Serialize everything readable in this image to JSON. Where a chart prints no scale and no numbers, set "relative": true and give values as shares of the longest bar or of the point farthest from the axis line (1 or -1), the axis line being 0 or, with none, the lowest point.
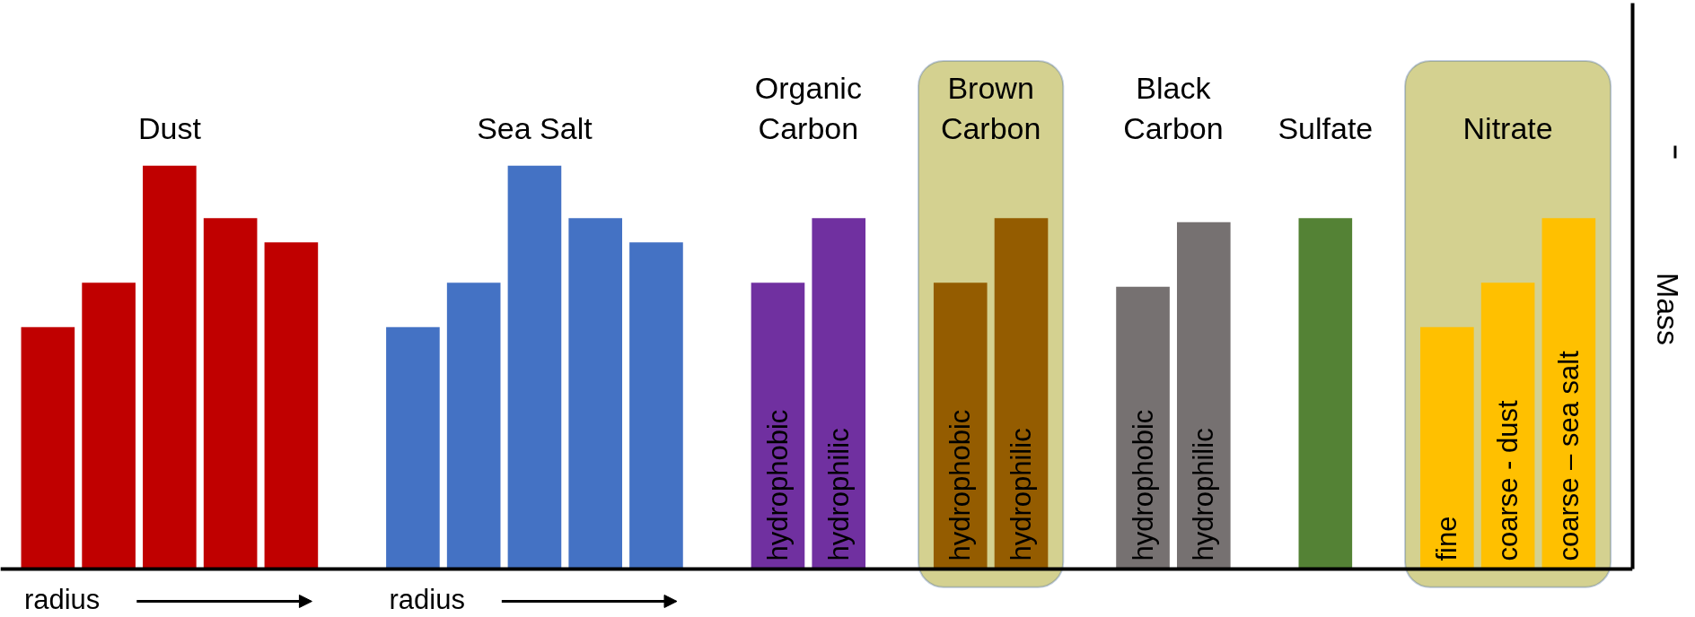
{
  "chart_data": {
    "type": "bar",
    "relative": true,
    "ylabel": "Mass",
    "categories": [
      null,
      null,
      null,
      null,
      null,
      null,
      null,
      null,
      null,
      null,
      null,
      null,
      "hydrophobic",
      "hydrophilic",
      null,
      "hydrophobic",
      "hydrophilic",
      null,
      "hydrophobic",
      "hydrophilic",
      null,
      null,
      null,
      "fine",
      "coarse - dust",
      "coarse – sea salt"
    ],
    "series": [
      {
        "name": "Dust",
        "color": "#c00000",
        "values": [
          0.6,
          0.71,
          1.0,
          0.87,
          0.81,
          null,
          null,
          null,
          null,
          null,
          null,
          null,
          null,
          null,
          null,
          null,
          null,
          null,
          null,
          null,
          null,
          null,
          null,
          null,
          null,
          null
        ]
      },
      {
        "name": "Sea Salt",
        "color": "#4472c4",
        "values": [
          null,
          null,
          null,
          null,
          null,
          null,
          0.6,
          0.71,
          1.0,
          0.87,
          0.81,
          null,
          null,
          null,
          null,
          null,
          null,
          null,
          null,
          null,
          null,
          null,
          null,
          null,
          null,
          null
        ]
      },
      {
        "name": "Organic Carbon",
        "color": "#7030a0",
        "values": [
          null,
          null,
          null,
          null,
          null,
          null,
          null,
          null,
          null,
          null,
          null,
          null,
          0.71,
          0.87,
          null,
          null,
          null,
          null,
          null,
          null,
          null,
          null,
          null,
          null,
          null,
          null
        ]
      },
      {
        "name": "Brown Carbon",
        "color": "#945c00",
        "values": [
          null,
          null,
          null,
          null,
          null,
          null,
          null,
          null,
          null,
          null,
          null,
          null,
          null,
          null,
          null,
          0.71,
          0.87,
          null,
          null,
          null,
          null,
          null,
          null,
          null,
          null,
          null
        ]
      },
      {
        "name": "Black Carbon",
        "color": "#767171",
        "values": [
          null,
          null,
          null,
          null,
          null,
          null,
          null,
          null,
          null,
          null,
          null,
          null,
          null,
          null,
          null,
          null,
          null,
          null,
          0.7,
          0.86,
          null,
          null,
          null,
          null,
          null,
          null
        ]
      },
      {
        "name": "Sulfate",
        "color": "#548235",
        "values": [
          null,
          null,
          null,
          null,
          null,
          null,
          null,
          null,
          null,
          null,
          null,
          null,
          null,
          null,
          null,
          null,
          null,
          null,
          null,
          null,
          null,
          0.87,
          null,
          null,
          null,
          null
        ]
      },
      {
        "name": "Nitrate",
        "color": "#ffc000",
        "values": [
          null,
          null,
          null,
          null,
          null,
          null,
          null,
          null,
          null,
          null,
          null,
          null,
          null,
          null,
          null,
          null,
          null,
          null,
          null,
          null,
          null,
          null,
          null,
          0.6,
          0.71,
          0.87
        ]
      }
    ],
    "annotations": [
      "radius",
      "radius"
    ],
    "grid": false
  }
}
